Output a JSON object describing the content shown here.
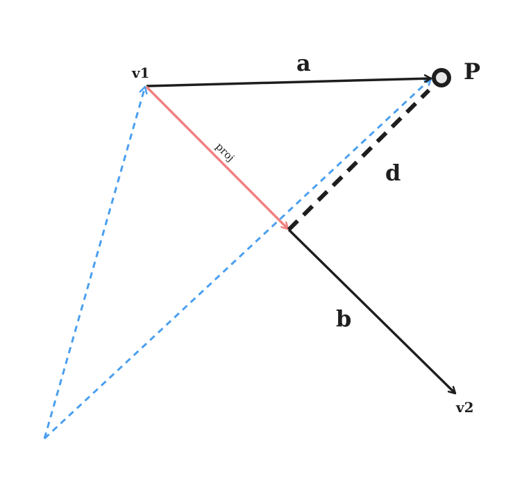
{
  "labels": {
    "v1": "v1",
    "v2": "v2",
    "a": "a",
    "b": "b",
    "d": "d",
    "P": "P",
    "proj": "proj"
  },
  "colors": {
    "stroke": "#1e1e1e",
    "projection": "#f08080",
    "helper": "#4a9ff0",
    "point_fill": "#e8e8e8"
  }
}
